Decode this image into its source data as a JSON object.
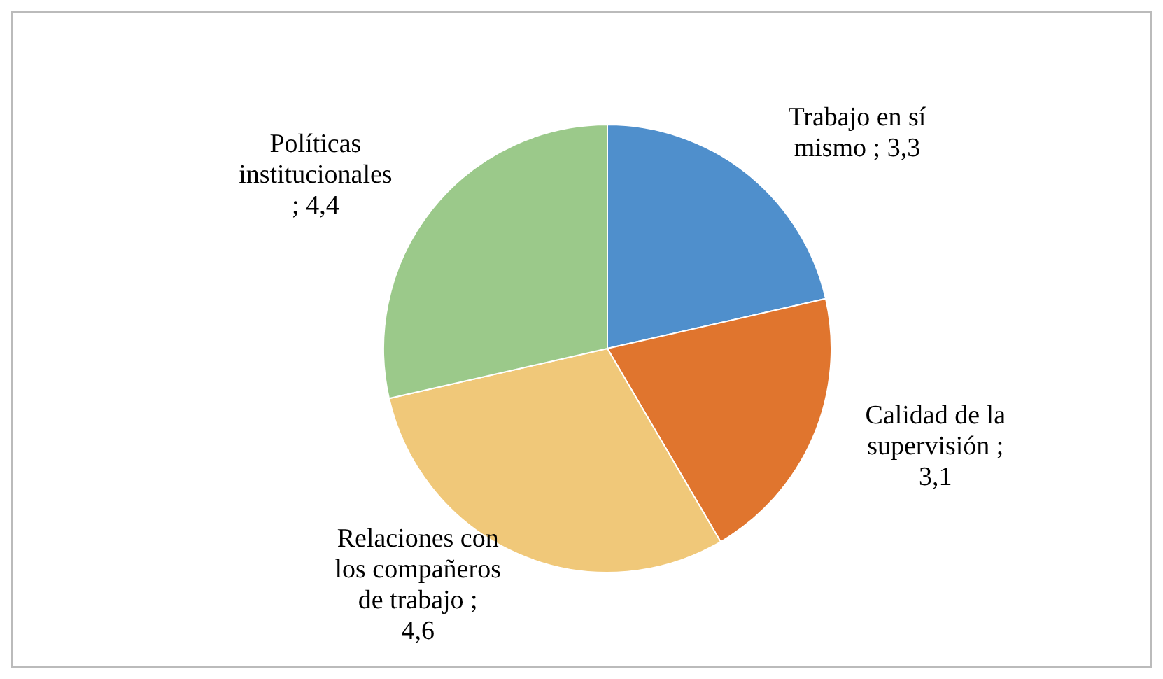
{
  "chart_data": {
    "type": "pie",
    "categories": [
      "Trabajo en sí mismo",
      "Calidad de la supervisión",
      "Relaciones con los compañeros de trabajo",
      "Políticas institucionales"
    ],
    "values": [
      3.3,
      3.1,
      4.6,
      4.4
    ],
    "value_labels": [
      "; 3,3",
      "; 3,1",
      "; 4,6",
      "; 4,4"
    ],
    "colors": [
      "#4f8fcc",
      "#e0752e",
      "#f0c879",
      "#9bc98a"
    ],
    "legend": false
  }
}
